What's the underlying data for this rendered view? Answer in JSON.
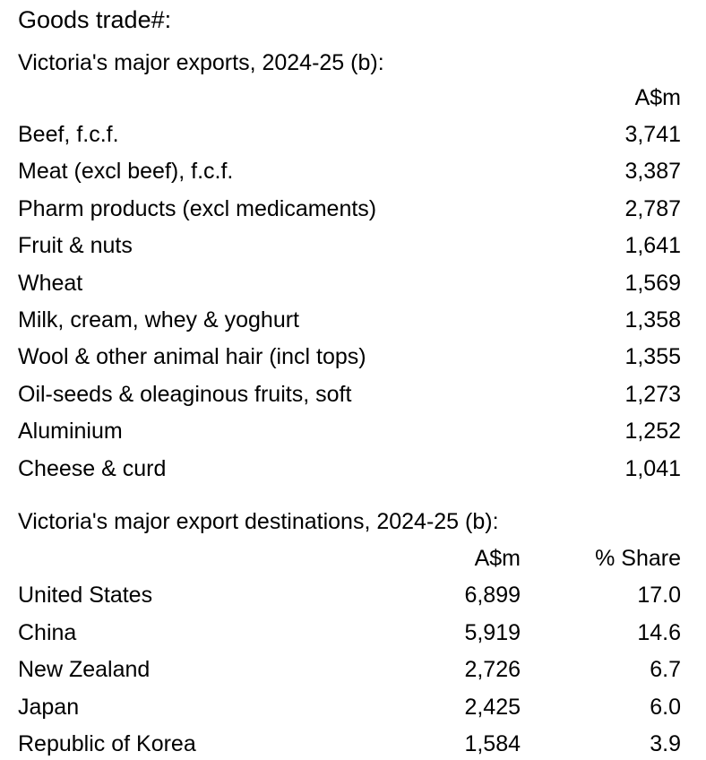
{
  "title": "Goods trade#:",
  "exports": {
    "title": "Victoria's major exports, 2024-25 (b):",
    "header": [
      "A$m"
    ],
    "rows": [
      [
        "Beef, f.c.f.",
        "3,741"
      ],
      [
        "Meat (excl beef), f.c.f.",
        "3,387"
      ],
      [
        "Pharm products (excl medicaments)",
        "2,787"
      ],
      [
        "Fruit & nuts",
        "1,641"
      ],
      [
        "Wheat",
        "1,569"
      ],
      [
        "Milk, cream, whey & yoghurt",
        "1,358"
      ],
      [
        "Wool & other animal hair (incl tops)",
        "1,355"
      ],
      [
        "Oil-seeds & oleaginous fruits, soft",
        "1,273"
      ],
      [
        "Aluminium",
        "1,252"
      ],
      [
        "Cheese & curd",
        "1,041"
      ]
    ]
  },
  "destinations": {
    "title": "Victoria's major export destinations, 2024-25 (b):",
    "header": [
      "A$m",
      "% Share"
    ],
    "rows": [
      [
        "United States",
        "6,899",
        "17.0"
      ],
      [
        "China",
        "5,919",
        "14.6"
      ],
      [
        "New Zealand",
        "2,726",
        "6.7"
      ],
      [
        "Japan",
        "2,425",
        "6.0"
      ],
      [
        "Republic of Korea",
        "1,584",
        "3.9"
      ]
    ]
  }
}
